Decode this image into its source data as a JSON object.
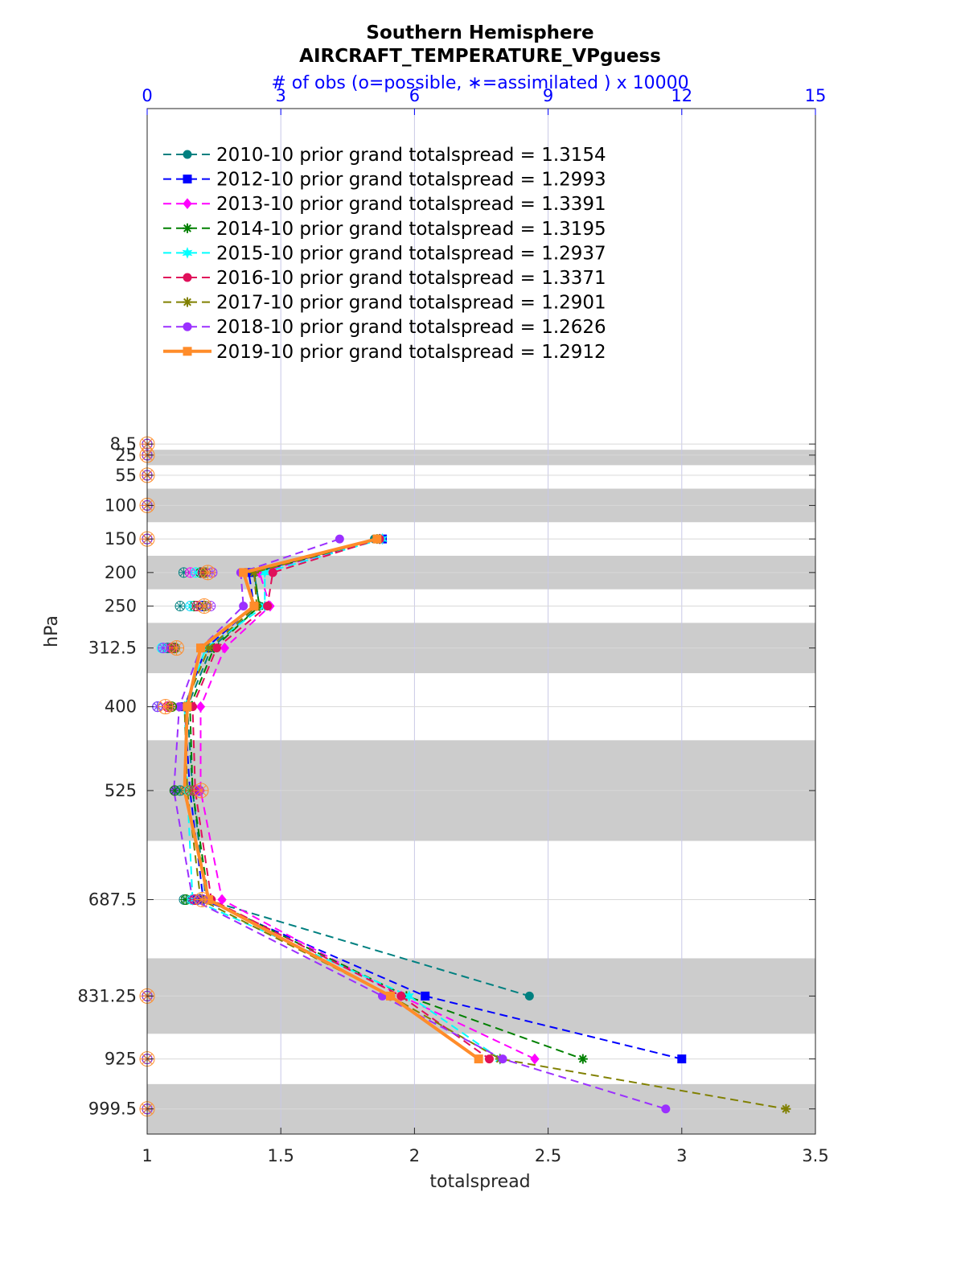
{
  "chart_data": {
    "type": "line",
    "title": "Southern Hemisphere",
    "subtitle": "AIRCRAFT_TEMPERATURE_VPguess",
    "top_axis_label": "# of obs (o=possible, ∗=assimilated ) x 10000",
    "xlabel": "totalspread",
    "ylabel": "hPa",
    "xlim": [
      1,
      3.5
    ],
    "xticks": [
      "1",
      "1.5",
      "2",
      "2.5",
      "3",
      "3.5"
    ],
    "top_xlim": [
      0,
      15
    ],
    "top_xticks": [
      "0",
      "3",
      "6",
      "9",
      "12",
      "15"
    ],
    "yticks": [
      "8.5",
      "25",
      "55",
      "100",
      "150",
      "200",
      "250",
      "312.5",
      "400",
      "525",
      "687.5",
      "831.25",
      "925",
      "999.5"
    ],
    "levels": [
      8.5,
      25,
      55,
      100,
      150,
      200,
      250,
      312.5,
      400,
      525,
      687.5,
      831.25,
      925,
      999.5
    ],
    "level_bands": [
      [
        0,
        17
      ],
      [
        17,
        40
      ],
      [
        40,
        75
      ],
      [
        75,
        125
      ],
      [
        125,
        175
      ],
      [
        175,
        225
      ],
      [
        225,
        275
      ],
      [
        275,
        350
      ],
      [
        350,
        450
      ],
      [
        450,
        600
      ],
      [
        600,
        775
      ],
      [
        775,
        887.5
      ],
      [
        887.5,
        962.5
      ],
      [
        962.5,
        1037
      ]
    ],
    "grid": true,
    "legend_position": "top-left",
    "series": [
      {
        "name": "2010-10 prior grand totalspread = 1.3154",
        "color": "#008080",
        "marker": "circle",
        "style": "dashed",
        "spread": [
          null,
          null,
          null,
          null,
          1.85,
          1.4,
          1.42,
          1.24,
          1.15,
          1.17,
          1.22,
          2.43,
          null,
          null
        ],
        "possible": [
          0,
          0,
          0,
          0,
          0,
          0.82,
          0.74,
          0.46,
          0.23,
          0.74,
          0.83,
          0,
          0,
          0
        ],
        "assimilated": [
          0,
          0,
          0,
          0,
          0,
          0.82,
          0.74,
          0.46,
          0.23,
          0.74,
          0.83,
          0,
          0,
          0
        ]
      },
      {
        "name": "2012-10 prior grand totalspread = 1.2993",
        "color": "#0000ff",
        "marker": "square",
        "style": "dashed",
        "spread": [
          null,
          null,
          null,
          null,
          1.88,
          1.38,
          1.4,
          1.22,
          1.14,
          1.16,
          1.21,
          2.04,
          3.0,
          null
        ],
        "possible": [
          0,
          0,
          0,
          0,
          0,
          1.26,
          1.24,
          0.59,
          0.23,
          1.16,
          1.12,
          0,
          0,
          0
        ],
        "assimilated": [
          0,
          0,
          0,
          0,
          0,
          1.24,
          1.24,
          0.59,
          0.23,
          1.16,
          1.12,
          0,
          0,
          0
        ]
      },
      {
        "name": "2013-10 prior grand totalspread = 1.3391",
        "color": "#ff00ff",
        "marker": "diamond",
        "style": "dashed",
        "spread": [
          null,
          null,
          null,
          null,
          1.87,
          1.42,
          1.46,
          1.29,
          1.2,
          1.2,
          1.28,
          1.95,
          2.45,
          null
        ],
        "possible": [
          0,
          0,
          0,
          0,
          0,
          0.97,
          0.97,
          0.56,
          0.49,
          0.97,
          1.02,
          0,
          0,
          0
        ],
        "assimilated": [
          0,
          0,
          0,
          0,
          0,
          0.97,
          0.97,
          0.56,
          0.49,
          0.97,
          1.02,
          0,
          0,
          0
        ]
      },
      {
        "name": "2014-10 prior grand totalspread = 1.3195",
        "color": "#008000",
        "marker": "asterisk",
        "style": "dashed",
        "spread": [
          null,
          null,
          null,
          null,
          1.87,
          1.4,
          1.42,
          1.25,
          1.16,
          1.17,
          1.23,
          1.97,
          2.63,
          null
        ],
        "possible": [
          0,
          0,
          0,
          0,
          0,
          1.2,
          1.06,
          0.62,
          0.55,
          0.62,
          0.87,
          0,
          0,
          0
        ],
        "assimilated": [
          0,
          0,
          0,
          0,
          0,
          1.2,
          1.06,
          0.62,
          0.55,
          0.62,
          0.87,
          0,
          0,
          0
        ]
      },
      {
        "name": "2015-10 prior grand totalspread = 1.2937",
        "color": "#00ffff",
        "marker": "hexagram",
        "style": "dashed",
        "spread": [
          null,
          null,
          null,
          null,
          1.88,
          1.44,
          1.44,
          1.22,
          1.14,
          1.15,
          1.17,
          1.98,
          2.32,
          null
        ],
        "possible": [
          0,
          0,
          0,
          0,
          0,
          1.09,
          0.97,
          0.33,
          0.23,
          0.94,
          1.01,
          0,
          0,
          0
        ],
        "assimilated": [
          0,
          0,
          0,
          0,
          0,
          1.09,
          0.97,
          0.33,
          0.23,
          0.94,
          1.01,
          0,
          0,
          0
        ]
      },
      {
        "name": "2016-10 prior grand totalspread = 1.3371",
        "color": "#e0105a",
        "marker": "circle",
        "style": "dashed",
        "spread": [
          null,
          null,
          null,
          null,
          1.87,
          1.47,
          1.45,
          1.26,
          1.17,
          1.18,
          1.24,
          1.95,
          2.28,
          null
        ],
        "possible": [
          0,
          0,
          0,
          0,
          0,
          1.25,
          1.12,
          0.55,
          0.46,
          1.07,
          1.07,
          0,
          0,
          0
        ],
        "assimilated": [
          0,
          0,
          0,
          0,
          0,
          1.25,
          1.12,
          0.55,
          0.46,
          1.07,
          1.07,
          0,
          0,
          0
        ]
      },
      {
        "name": "2017-10 prior grand totalspread = 1.2901",
        "color": "#808000",
        "marker": "asterisk",
        "style": "dashed",
        "spread": [
          null,
          null,
          null,
          null,
          1.86,
          1.4,
          1.41,
          1.23,
          1.14,
          1.15,
          1.2,
          1.91,
          2.32,
          3.39
        ],
        "possible": [
          0,
          0,
          0,
          0,
          0,
          1.31,
          1.31,
          0.62,
          0.53,
          0.96,
          1.24,
          0,
          0,
          0
        ],
        "assimilated": [
          0,
          0,
          0,
          0,
          0,
          1.31,
          1.31,
          0.62,
          0.53,
          0.96,
          1.24,
          0,
          0,
          0
        ]
      },
      {
        "name": "2018-10 prior grand totalspread = 1.2626",
        "color": "#9b30ff",
        "marker": "circle",
        "style": "dashed",
        "spread": [
          null,
          null,
          null,
          null,
          1.72,
          1.35,
          1.36,
          1.2,
          1.12,
          1.1,
          1.17,
          1.88,
          2.33,
          2.94
        ],
        "possible": [
          0,
          0,
          0,
          0,
          0,
          1.46,
          1.42,
          0.36,
          0.23,
          1.16,
          1.24,
          0,
          0,
          0
        ],
        "assimilated": [
          0,
          0,
          0,
          0,
          0,
          1.46,
          1.42,
          0.36,
          0.23,
          1.16,
          1.24,
          0,
          0,
          0
        ]
      },
      {
        "name": "2019-10 prior grand totalspread = 1.2912",
        "color": "#ff8c2a",
        "marker": "square",
        "style": "solid",
        "spread": [
          null,
          null,
          null,
          null,
          1.86,
          1.36,
          1.4,
          1.2,
          1.15,
          1.14,
          1.23,
          1.91,
          2.24,
          null
        ],
        "possible": [
          0,
          0,
          0,
          0,
          0,
          1.36,
          1.28,
          0.66,
          0.41,
          1.21,
          1.23,
          0,
          0,
          0
        ],
        "assimilated": [
          0,
          0,
          0,
          0,
          0,
          1.36,
          1.28,
          0.66,
          0.41,
          1.21,
          1.23,
          0,
          0,
          0
        ]
      }
    ]
  }
}
